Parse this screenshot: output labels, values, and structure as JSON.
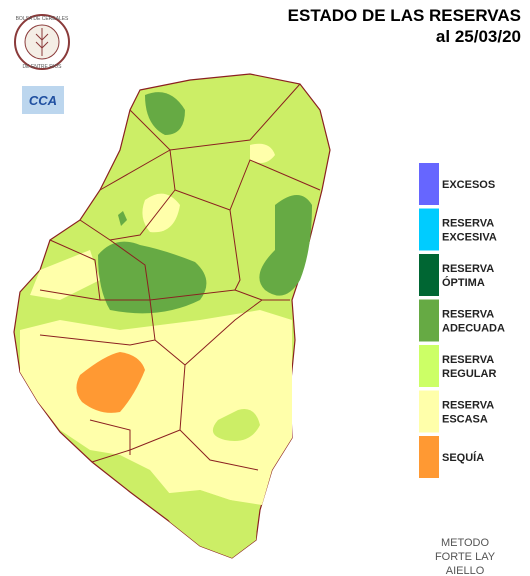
{
  "header": {
    "title": "ESTADO DE LAS RESERVAS",
    "date": "al 25/03/20"
  },
  "logo": {
    "top": "BOLSA DE CEREALES",
    "bottom": "DE ENTRE RIOS",
    "badge": "CCA"
  },
  "legend": [
    {
      "lines": [
        "EXCESOS"
      ],
      "color": "#6666ff"
    },
    {
      "lines": [
        "RESERVA",
        "EXCESIVA"
      ],
      "color": "#00ccff"
    },
    {
      "lines": [
        "RESERVA",
        "ÓPTIMA"
      ],
      "color": "#006633"
    },
    {
      "lines": [
        "RESERVA",
        "ADECUADA"
      ],
      "color": "#66aa44"
    },
    {
      "lines": [
        "RESERVA",
        "REGULAR"
      ],
      "color": "#ccff66"
    },
    {
      "lines": [
        "RESERVA",
        "ESCASA"
      ],
      "color": "#ffffaa"
    },
    {
      "lines": [
        "SEQUÍA"
      ],
      "color": "#ff9933"
    }
  ],
  "method": [
    "METODO",
    "FORTE LAY",
    "AIELLO"
  ]
}
